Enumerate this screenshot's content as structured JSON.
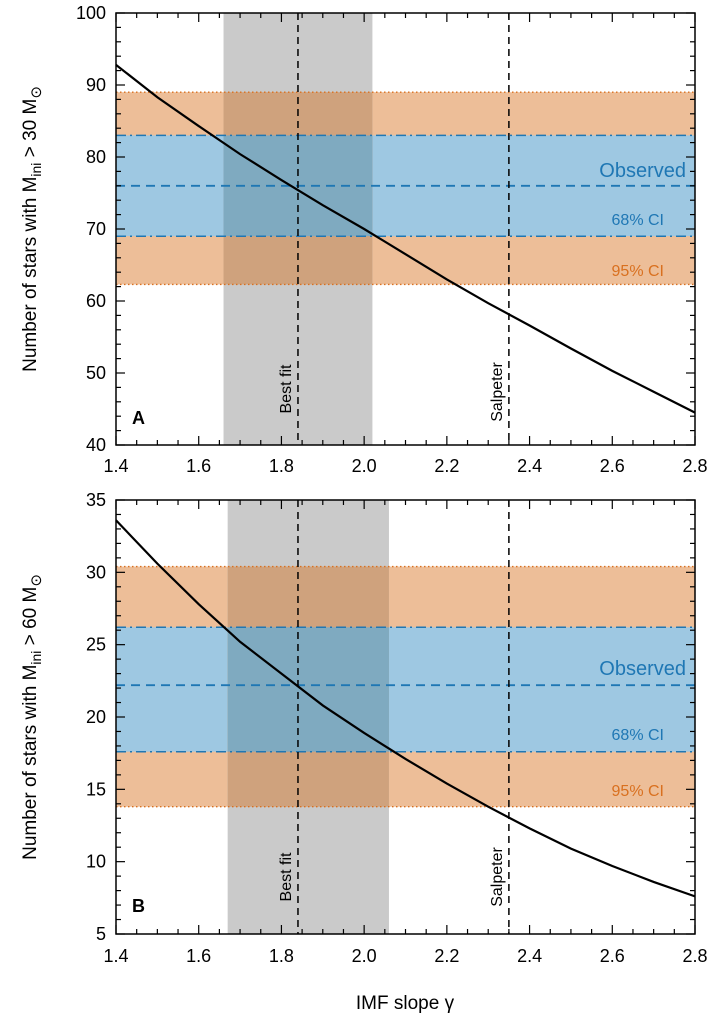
{
  "chart_data": [
    {
      "type": "line",
      "panel_label": "A",
      "ylabel_main": "Number of stars with M",
      "ylabel_sub": "ini",
      "ylabel_tail": " > 30 M",
      "ylabel_sun": "⊙",
      "xlim": [
        1.4,
        2.8
      ],
      "ylim": [
        40,
        100
      ],
      "xticks": [
        "1.4",
        "1.6",
        "1.8",
        "2.0",
        "2.2",
        "2.4",
        "2.6",
        "2.8"
      ],
      "yticks": [
        "40",
        "50",
        "60",
        "70",
        "80",
        "90",
        "100"
      ],
      "curve": {
        "x": [
          1.4,
          1.5,
          1.6,
          1.7,
          1.8,
          1.9,
          2.0,
          2.1,
          2.2,
          2.3,
          2.4,
          2.5,
          2.6,
          2.7,
          2.8
        ],
        "y": [
          92.8,
          88.3,
          84.3,
          80.4,
          76.8,
          73.3,
          70.0,
          66.5,
          63.0,
          59.7,
          56.6,
          53.4,
          50.3,
          47.4,
          44.5
        ]
      },
      "observed": 76,
      "ci68": [
        69,
        83
      ],
      "ci95": [
        62.3,
        89
      ],
      "best_fit": 1.84,
      "best_fit_range": [
        1.66,
        2.02
      ],
      "salpeter": 2.35,
      "labels": {
        "observed": "Observed",
        "ci68": "68% CI",
        "ci95": "95% CI",
        "best_fit": "Best fit",
        "salpeter": "Salpeter"
      },
      "colors": {
        "ci95_fill": "#edbe98",
        "ci68_fill": "#9ec8e2",
        "overlap95": "#cfa27d",
        "overlap68": "#7faac0",
        "gray_band": "#cacaca",
        "line_blue": "#1f77b4",
        "text_orange": "#d9701f",
        "text_blue": "#1f77b4"
      }
    },
    {
      "type": "line",
      "panel_label": "B",
      "ylabel_main": "Number of stars with M",
      "ylabel_sub": "ini",
      "ylabel_tail": " > 60 M",
      "ylabel_sun": "⊙",
      "xlabel": "IMF slope γ",
      "xlim": [
        1.4,
        2.8
      ],
      "ylim": [
        5,
        35
      ],
      "xticks": [
        "1.4",
        "1.6",
        "1.8",
        "2.0",
        "2.2",
        "2.4",
        "2.6",
        "2.8"
      ],
      "yticks": [
        "5",
        "10",
        "15",
        "20",
        "25",
        "30",
        "35"
      ],
      "curve": {
        "x": [
          1.4,
          1.5,
          1.6,
          1.7,
          1.8,
          1.9,
          2.0,
          2.1,
          2.2,
          2.3,
          2.4,
          2.5,
          2.6,
          2.7,
          2.8
        ],
        "y": [
          33.6,
          30.6,
          27.8,
          25.2,
          23.0,
          20.8,
          18.9,
          17.1,
          15.4,
          13.8,
          12.3,
          10.9,
          9.7,
          8.6,
          7.6
        ]
      },
      "observed": 22.2,
      "ci68": [
        17.6,
        26.2
      ],
      "ci95": [
        13.8,
        30.4
      ],
      "best_fit": 1.84,
      "best_fit_range": [
        1.67,
        2.06
      ],
      "salpeter": 2.35,
      "labels": {
        "observed": "Observed",
        "ci68": "68% CI",
        "ci95": "95% CI",
        "best_fit": "Best fit",
        "salpeter": "Salpeter"
      },
      "colors": {
        "ci95_fill": "#edbe98",
        "ci68_fill": "#9ec8e2",
        "overlap95": "#cfa27d",
        "overlap68": "#7faac0",
        "gray_band": "#cacaca",
        "line_blue": "#1f77b4",
        "text_orange": "#d9701f",
        "text_blue": "#1f77b4"
      }
    }
  ]
}
